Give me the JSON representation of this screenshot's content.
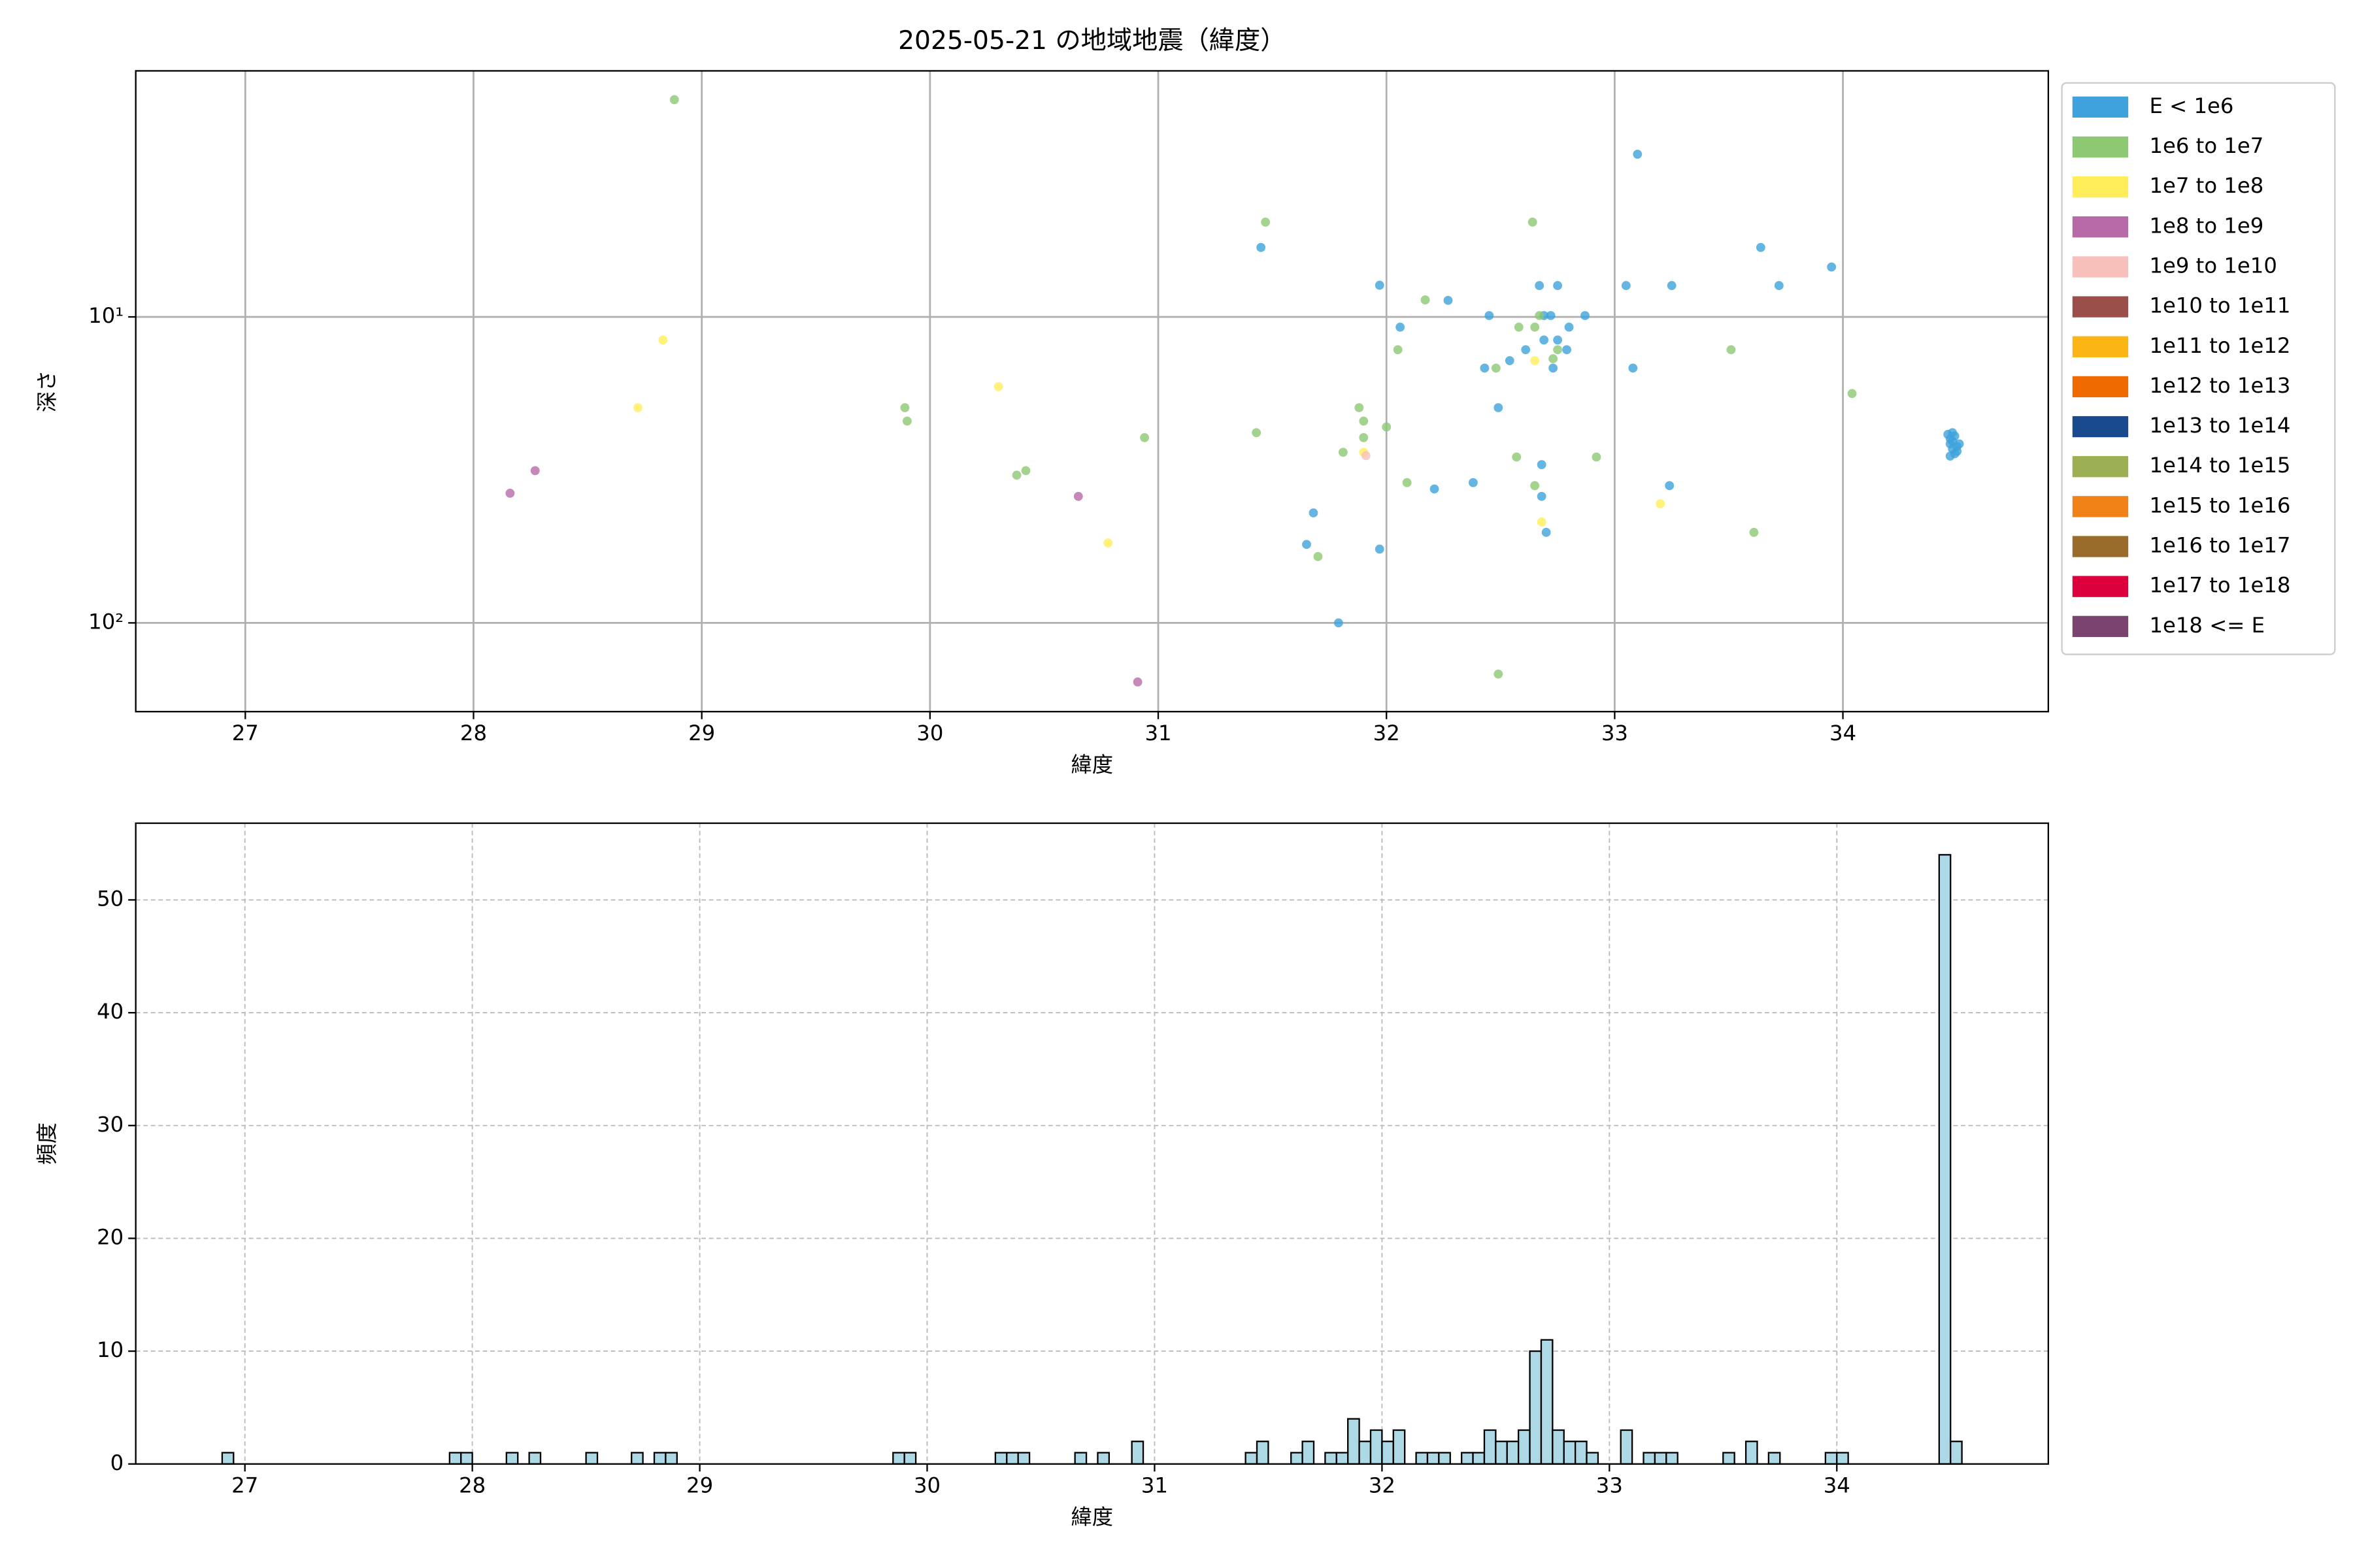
{
  "chart_data": [
    {
      "type": "scatter",
      "title": "2025-05-21 の地域地震（緯度）",
      "xlabel": "緯度",
      "ylabel": "深さ",
      "xlim": [
        26.52,
        34.9
      ],
      "xticks": [
        27,
        28,
        29,
        30,
        31,
        32,
        33,
        34
      ],
      "ylim": [
        1.57,
        195
      ],
      "yscale": "log",
      "y_inverted": true,
      "yticks": [
        {
          "value": 10,
          "label": "10¹"
        },
        {
          "value": 100,
          "label": "10²"
        }
      ],
      "grid": true,
      "legend": "outside right",
      "series": [
        {
          "name": "E < 1e6",
          "color": "#3fa2dc",
          "x": [
            33.1,
            31.45,
            33.64,
            31.97,
            33.05,
            33.25,
            33.72,
            33.95,
            32.27,
            32.06,
            32.67,
            32.75,
            32.45,
            32.69,
            32.72,
            32.87,
            32.8,
            32.69,
            32.75,
            32.61,
            32.79,
            32.54,
            32.73,
            32.43,
            33.08,
            32.49,
            32.38,
            32.21,
            33.24,
            32.68,
            32.68,
            31.68,
            32.7,
            31.65,
            31.97,
            31.79,
            34.46,
            34.47,
            34.47,
            34.48,
            34.48,
            34.49,
            34.49,
            34.5,
            34.5,
            34.51,
            34.47,
            34.48
          ],
          "y": [
            2.94,
            5.93,
            5.93,
            7.88,
            7.9,
            7.9,
            7.9,
            6.87,
            8.83,
            10.8,
            7.9,
            7.9,
            9.9,
            9.9,
            9.9,
            9.9,
            10.8,
            11.9,
            11.9,
            12.8,
            12.8,
            13.9,
            14.7,
            14.7,
            14.7,
            19.8,
            34.8,
            36.5,
            35.6,
            30.4,
            38.6,
            43.7,
            50.6,
            55.4,
            57.4,
            100,
            24.2,
            25,
            26,
            27,
            25.5,
            28,
            24.5,
            26.5,
            27.5,
            26,
            28.5,
            23.9
          ]
        },
        {
          "name": "1e6 to 1e7",
          "color": "#8dc873",
          "x": [
            28.88,
            31.47,
            32.64,
            32.17,
            32.67,
            32.65,
            32.58,
            32.05,
            33.51,
            32.75,
            32.73,
            32.48,
            34.04,
            29.89,
            29.9,
            31.88,
            31.9,
            32.0,
            31.9,
            31.43,
            31.81,
            32.57,
            32.92,
            30.94,
            30.42,
            30.38,
            32.09,
            32.65,
            33.61,
            31.7,
            32.49
          ],
          "y": [
            1.95,
            4.9,
            4.9,
            8.8,
            9.9,
            10.8,
            10.8,
            12.8,
            12.8,
            12.8,
            13.7,
            14.7,
            17.8,
            19.8,
            21.9,
            19.8,
            21.9,
            22.9,
            24.8,
            23.9,
            27.7,
            28.7,
            28.7,
            24.8,
            31.8,
            32.9,
            34.8,
            35.6,
            50.6,
            60.7,
            147
          ]
        },
        {
          "name": "1e7 to 1e8",
          "color": "#ffee59",
          "x": [
            28.83,
            28.72,
            30.3,
            32.65,
            31.9,
            32.68,
            33.2,
            30.78
          ],
          "y": [
            11.9,
            19.8,
            16.9,
            13.9,
            27.7,
            46.8,
            40.8,
            54.8
          ]
        },
        {
          "name": "1e8 to 1e9",
          "color": "#b86aa8",
          "x": [
            28.16,
            28.27,
            30.65,
            30.91
          ],
          "y": [
            37.7,
            31.8,
            38.6,
            156
          ]
        },
        {
          "name": "1e9 to 1e10",
          "color": "#f7c0bb",
          "x": [
            31.91
          ],
          "y": [
            28.4
          ]
        },
        {
          "name": "1e10 to 1e11",
          "color": "#9a4f4a",
          "x": [],
          "y": []
        },
        {
          "name": "1e11 to 1e12",
          "color": "#fbb515",
          "x": [],
          "y": []
        },
        {
          "name": "1e12 to 1e13",
          "color": "#ef6a00",
          "x": [],
          "y": []
        },
        {
          "name": "1e13 to 1e14",
          "color": "#1a4a8e",
          "x": [],
          "y": []
        },
        {
          "name": "1e14 to 1e15",
          "color": "#9caf52",
          "x": [],
          "y": []
        },
        {
          "name": "1e15 to 1e16",
          "color": "#f08218",
          "x": [],
          "y": []
        },
        {
          "name": "1e16 to 1e17",
          "color": "#996c2b",
          "x": [],
          "y": []
        },
        {
          "name": "1e17 to 1e18",
          "color": "#dc003c",
          "x": [],
          "y": []
        },
        {
          "name": "1e18 <= E",
          "color": "#7b4470",
          "x": [],
          "y": []
        }
      ]
    },
    {
      "type": "histogram",
      "xlabel": "緯度",
      "ylabel": "頻度",
      "color": "#add8e6",
      "xlim": [
        26.52,
        34.93
      ],
      "xticks": [
        27,
        28,
        29,
        30,
        31,
        32,
        33,
        34
      ],
      "ylim": [
        0,
        56.8
      ],
      "yticks": [
        0,
        10,
        20,
        30,
        40,
        50
      ],
      "grid": true,
      "bins": [
        26.9,
        26.95,
        27,
        27.05,
        27.1,
        27.15,
        27.2,
        27.25,
        27.3,
        27.35,
        27.4,
        27.45,
        27.5,
        27.55,
        27.6,
        27.65,
        27.7,
        27.75,
        27.8,
        27.85,
        27.9,
        27.95,
        28,
        28.05,
        28.1,
        28.15,
        28.2,
        28.25,
        28.3,
        28.35,
        28.4,
        28.45,
        28.5,
        28.55,
        28.6,
        28.65,
        28.7,
        28.75,
        28.8,
        28.85,
        28.9,
        28.95,
        29,
        29.05,
        29.1,
        29.15,
        29.2,
        29.25,
        29.3,
        29.35,
        29.4,
        29.45,
        29.5,
        29.55,
        29.6,
        29.65,
        29.7,
        29.75,
        29.8,
        29.85,
        29.9,
        29.95,
        30,
        30.05,
        30.1,
        30.15,
        30.2,
        30.25,
        30.3,
        30.35,
        30.4,
        30.45,
        30.5,
        30.55,
        30.6,
        30.65,
        30.7,
        30.75,
        30.8,
        30.85,
        30.9,
        30.95,
        31,
        31.05,
        31.1,
        31.15,
        31.2,
        31.25,
        31.3,
        31.35,
        31.4,
        31.45,
        31.5,
        31.55,
        31.6,
        31.65,
        31.7,
        31.75,
        31.8,
        31.85,
        31.9,
        31.95,
        32,
        32.05,
        32.1,
        32.15,
        32.2,
        32.25,
        32.3,
        32.35,
        32.4,
        32.45,
        32.5,
        32.55,
        32.6,
        32.65,
        32.7,
        32.75,
        32.8,
        32.85,
        32.9,
        32.95,
        33,
        33.05,
        33.1,
        33.15,
        33.2,
        33.25,
        33.3,
        33.35,
        33.4,
        33.45,
        33.5,
        33.55,
        33.6,
        33.65,
        33.7,
        33.75,
        33.8,
        33.85,
        33.9,
        33.95,
        34,
        34.05,
        34.1,
        34.15,
        34.2,
        34.25,
        34.3,
        34.35,
        34.4,
        34.45,
        34.5,
        34.55
      ],
      "values": [
        1,
        0,
        0,
        0,
        0,
        0,
        0,
        0,
        0,
        0,
        0,
        0,
        0,
        0,
        0,
        0,
        0,
        0,
        0,
        0,
        1,
        1,
        0,
        0,
        0,
        1,
        0,
        1,
        0,
        0,
        0,
        0,
        1,
        0,
        0,
        0,
        1,
        0,
        1,
        1,
        0,
        0,
        0,
        0,
        0,
        0,
        0,
        0,
        0,
        0,
        0,
        0,
        0,
        0,
        0,
        0,
        0,
        0,
        0,
        1,
        1,
        0,
        0,
        0,
        0,
        0,
        0,
        0,
        1,
        1,
        1,
        0,
        0,
        0,
        0,
        1,
        0,
        1,
        0,
        0,
        2,
        0,
        0,
        0,
        0,
        0,
        0,
        0,
        0,
        0,
        1,
        2,
        0,
        0,
        1,
        2,
        0,
        1,
        1,
        4,
        2,
        3,
        2,
        3,
        0,
        1,
        1,
        1,
        0,
        1,
        1,
        3,
        2,
        2,
        3,
        10,
        11,
        3,
        2,
        2,
        1,
        0,
        0,
        3,
        0,
        1,
        1,
        1,
        0,
        0,
        0,
        0,
        1,
        0,
        2,
        0,
        1,
        0,
        0,
        0,
        0,
        1,
        1,
        0,
        0,
        0,
        0,
        0,
        0,
        0,
        0,
        54,
        2
      ]
    }
  ]
}
